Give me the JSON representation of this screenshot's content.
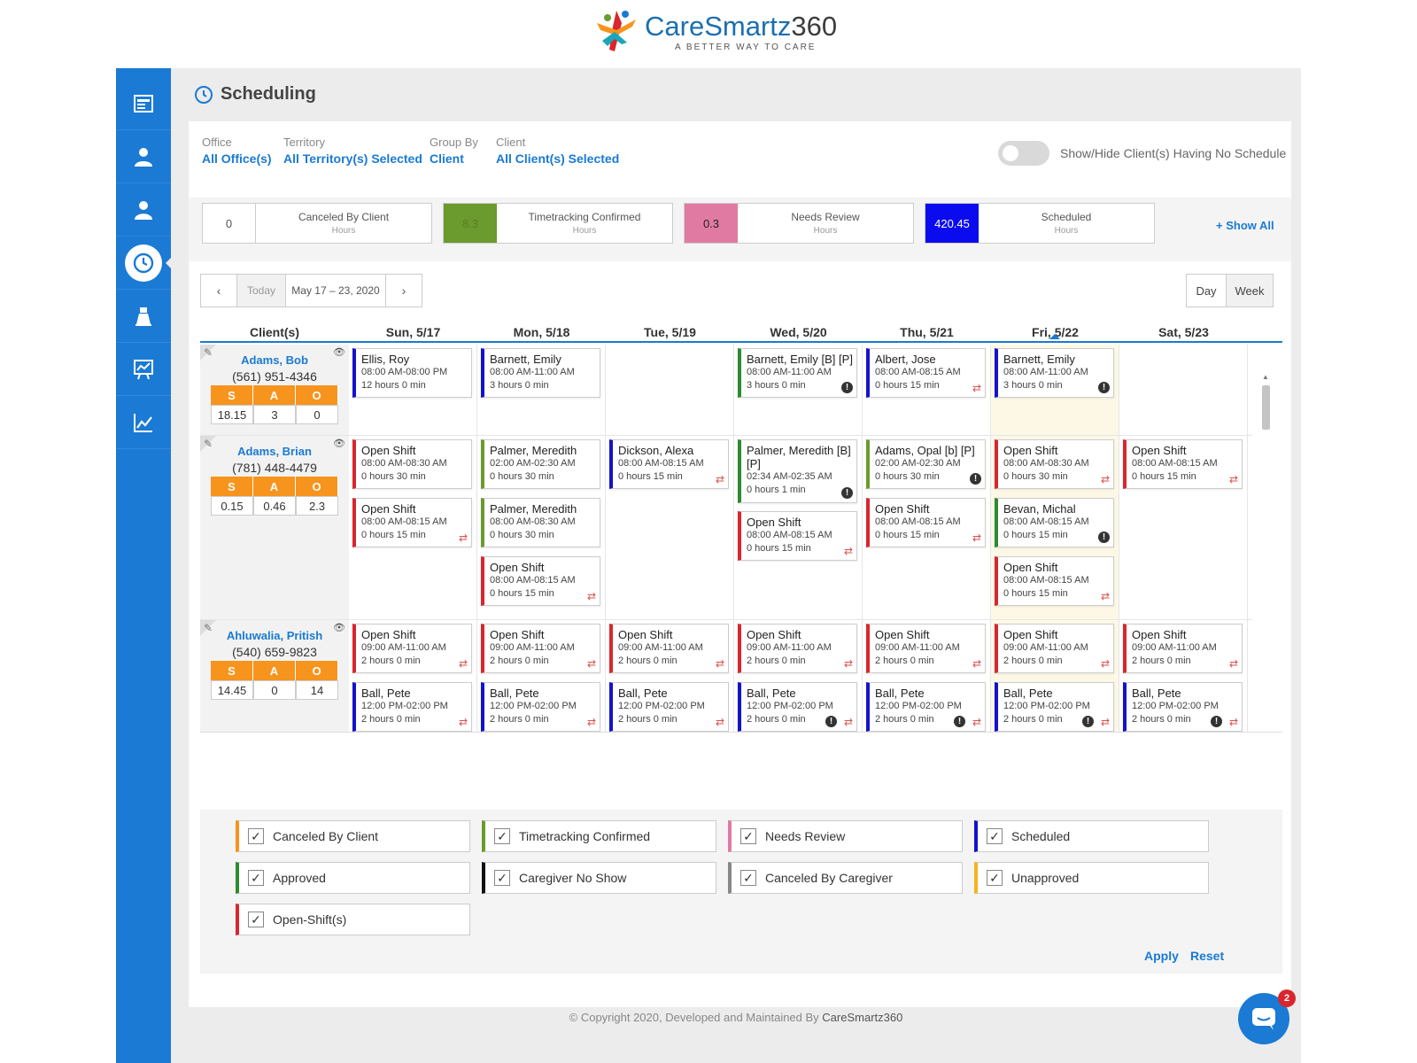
{
  "brand": {
    "name_main": "CareSmartz",
    "name_num": "360",
    "tagline": "A BETTER WAY TO CARE",
    "primary_color": "#1a7ad4"
  },
  "sidebar": {
    "items": [
      {
        "icon": "dashboard-icon"
      },
      {
        "icon": "caregiver-icon"
      },
      {
        "icon": "client-icon"
      },
      {
        "icon": "clock-icon",
        "active": true
      },
      {
        "icon": "billing-icon"
      },
      {
        "icon": "reports-icon"
      },
      {
        "icon": "analytics-icon"
      }
    ]
  },
  "page": {
    "title": "Scheduling"
  },
  "filters": {
    "office": {
      "label": "Office",
      "value": "All Office(s)"
    },
    "territory": {
      "label": "Territory",
      "value": "All Territory(s) Selected"
    },
    "group_by": {
      "label": "Group By",
      "value": "Client"
    },
    "client": {
      "label": "Client",
      "value": "All Client(s) Selected"
    },
    "toggle_label": "Show/Hide Client(s) Having No Schedule"
  },
  "summary": {
    "boxes": [
      {
        "value": "0",
        "title": "Canceled By Client",
        "sub": "Hours",
        "color": "#ffffff"
      },
      {
        "value": "8.3",
        "title": "Timetracking Confirmed",
        "sub": "Hours",
        "color": "#6b9a2e"
      },
      {
        "value": "0.3",
        "title": "Needs Review",
        "sub": "Hours",
        "color": "#e17aa2"
      },
      {
        "value": "420.45",
        "title": "Scheduled",
        "sub": "Hours",
        "color": "#0b0bf0"
      }
    ],
    "show_all": "+ Show All"
  },
  "nav": {
    "today": "Today",
    "range": "May 17 – 23, 2020",
    "day": "Day",
    "week": "Week"
  },
  "grid": {
    "headers": [
      "Client(s)",
      "Sun, 5/17",
      "Mon, 5/18",
      "Tue, 5/19",
      "Wed, 5/20",
      "Thu, 5/21",
      "Fri, 5/22",
      "Sat, 5/23"
    ],
    "clients": [
      {
        "name": "Adams, Bob",
        "phone": "(561) 951-4346",
        "s": "18.15",
        "a": "3",
        "o": "0"
      },
      {
        "name": "Adams, Brian",
        "phone": "(781) 448-4479",
        "s": "0.15",
        "a": "0.46",
        "o": "2.3"
      },
      {
        "name": "Ahluwalia, Pritish",
        "phone": "(540) 659-9823",
        "s": "14.45",
        "a": "0",
        "o": "14"
      }
    ],
    "sao_labels": [
      "S",
      "A",
      "O"
    ],
    "shifts": {
      "r0": [
        {
          "name": "Ellis, Roy",
          "time": "08:00 AM-08:00 PM",
          "dur": "12 hours 0 min"
        },
        {
          "name": "Barnett, Emily",
          "time": "08:00 AM-11:00 AM",
          "dur": "3 hours 0 min"
        },
        {
          "name": "Barnett, Emily [B] [P]",
          "time": "08:00 AM-11:00 AM",
          "dur": "3 hours 0 min"
        },
        {
          "name": "Albert, Jose",
          "time": "08:00 AM-08:15 AM",
          "dur": "0 hours 15 min"
        },
        {
          "name": "Barnett, Emily",
          "time": "08:00 AM-11:00 AM",
          "dur": "3 hours 0 min"
        }
      ],
      "r1": [
        {
          "name": "Open Shift",
          "time": "08:00 AM-08:30 AM",
          "dur": "0 hours 30 min"
        },
        {
          "name": "Open Shift",
          "time": "08:00 AM-08:15 AM",
          "dur": "0 hours 15 min"
        },
        {
          "name": "Palmer, Meredith",
          "time": "02:00 AM-02:30 AM",
          "dur": "0 hours 30 min"
        },
        {
          "name": "Palmer, Meredith",
          "time": "08:00 AM-08:30 AM",
          "dur": "0 hours 30 min"
        },
        {
          "name": "Open Shift",
          "time": "08:00 AM-08:15 AM",
          "dur": "0 hours 15 min"
        },
        {
          "name": "Dickson, Alexa",
          "time": "08:00 AM-08:15 AM",
          "dur": "0 hours 15 min"
        },
        {
          "name": "Palmer, Meredith [B]",
          "name2": "[P]",
          "time": "02:34 AM-02:35 AM",
          "dur": "0 hours 1 min"
        },
        {
          "name": "Open Shift",
          "time": "08:00 AM-08:15 AM",
          "dur": "0 hours 15 min"
        },
        {
          "name": "Adams, Opal [b] [P]",
          "time": "02:00 AM-02:30 AM",
          "dur": "0 hours 30 min"
        },
        {
          "name": "Open Shift",
          "time": "08:00 AM-08:15 AM",
          "dur": "0 hours 15 min"
        },
        {
          "name": "Open Shift",
          "time": "08:00 AM-08:30 AM",
          "dur": "0 hours 30 min"
        },
        {
          "name": "Bevan, Michal",
          "time": "08:00 AM-08:15 AM",
          "dur": "0 hours 15 min"
        },
        {
          "name": "Open Shift",
          "time": "08:00 AM-08:15 AM",
          "dur": "0 hours 15 min"
        },
        {
          "name": "Open Shift",
          "time": "08:00 AM-08:15 AM",
          "dur": "0 hours 15 min"
        }
      ],
      "r2_open": {
        "name": "Open Shift",
        "time": "09:00 AM-11:00 AM",
        "dur": "2 hours 0 min"
      },
      "r2_ball": {
        "name": "Ball, Pete",
        "time": "12:00 PM-02:00 PM",
        "dur": "2 hours 0 min"
      }
    }
  },
  "legend": {
    "items": [
      {
        "label": "Canceled By Client",
        "color": "#f7941d"
      },
      {
        "label": "Timetracking Confirmed",
        "color": "#6b9a2e"
      },
      {
        "label": "Needs Review",
        "color": "#e17aa2"
      },
      {
        "label": "Scheduled",
        "color": "#1313c9"
      },
      {
        "label": "Approved",
        "color": "#2e8b2e"
      },
      {
        "label": "Caregiver No Show",
        "color": "#111111"
      },
      {
        "label": "Canceled By Caregiver",
        "color": "#888888"
      },
      {
        "label": "Unapproved",
        "color": "#f7b21d"
      },
      {
        "label": "Open-Shift(s)",
        "color": "#d9262e"
      }
    ],
    "apply": "Apply",
    "reset": "Reset"
  },
  "footer": {
    "text": "© Copyright 2020, Developed and Maintained By ",
    "brand": "CareSmartz360"
  },
  "chat": {
    "badge": "2"
  }
}
